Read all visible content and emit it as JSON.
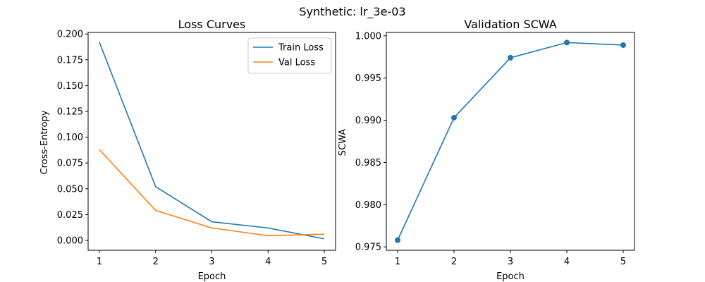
{
  "figure": {
    "title": "Synthetic: lr_3e-03"
  },
  "colors": {
    "series_1": "#1f77b4",
    "series_2": "#ff7f0e",
    "axis": "#000000",
    "background": "#ffffff"
  },
  "chart_data": [
    {
      "type": "line",
      "title": "Loss Curves",
      "xlabel": "Epoch",
      "ylabel": "Cross-Entropy",
      "x": [
        1,
        2,
        3,
        4,
        5
      ],
      "xlim": [
        0.8,
        5.2
      ],
      "ylim": [
        -0.0096,
        0.2015
      ],
      "xticks": [
        "1",
        "2",
        "3",
        "4",
        "5"
      ],
      "yticks": [
        0.0,
        0.025,
        0.05,
        0.075,
        0.1,
        0.125,
        0.15,
        0.175,
        0.2
      ],
      "ytick_labels": [
        "0.000",
        "0.025",
        "0.050",
        "0.075",
        "0.100",
        "0.125",
        "0.150",
        "0.175",
        "0.200"
      ],
      "grid": false,
      "legend": "top-right",
      "series": [
        {
          "name": "Train Loss",
          "color": "#1f77b4",
          "markers": false,
          "values": [
            0.192,
            0.052,
            0.018,
            0.012,
            0.0015
          ]
        },
        {
          "name": "Val Loss",
          "color": "#ff7f0e",
          "markers": false,
          "values": [
            0.088,
            0.029,
            0.012,
            0.0045,
            0.006
          ]
        }
      ]
    },
    {
      "type": "line",
      "title": "Validation SCWA",
      "xlabel": "Epoch",
      "ylabel": "SCWA",
      "x": [
        1,
        2,
        3,
        4,
        5
      ],
      "xlim": [
        0.8,
        5.2
      ],
      "ylim": [
        0.9746,
        1.0004
      ],
      "xticks": [
        "1",
        "2",
        "3",
        "4",
        "5"
      ],
      "yticks": [
        0.975,
        0.98,
        0.985,
        0.99,
        0.995,
        1.0
      ],
      "ytick_labels": [
        "0.975",
        "0.980",
        "0.985",
        "0.990",
        "0.995",
        "1.000"
      ],
      "grid": false,
      "legend": "none",
      "series": [
        {
          "name": "",
          "color": "#1f77b4",
          "markers": true,
          "values": [
            0.9758,
            0.9903,
            0.9974,
            0.9992,
            0.9989
          ]
        }
      ]
    }
  ]
}
